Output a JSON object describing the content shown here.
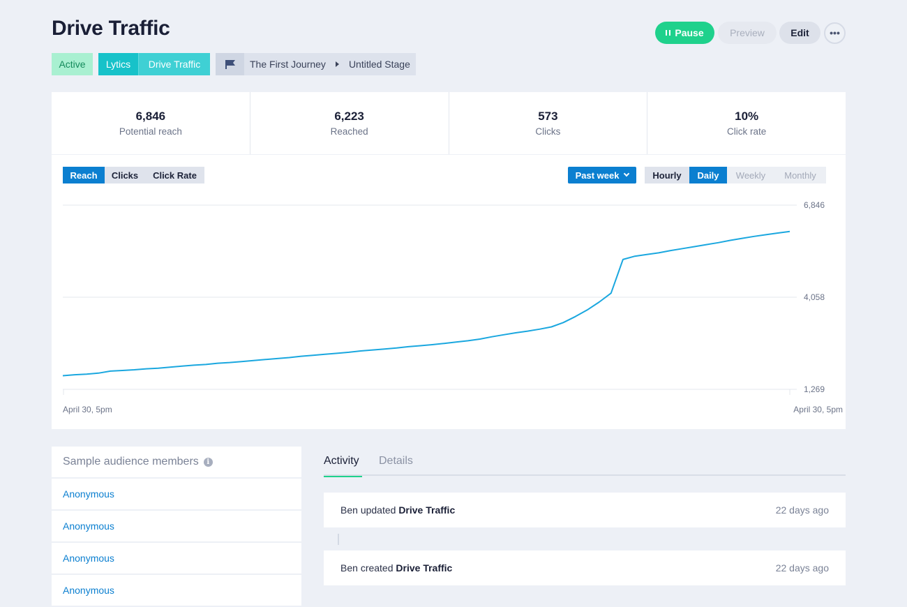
{
  "header": {
    "title": "Drive Traffic",
    "actions": {
      "pause_label": "Pause",
      "preview_label": "Preview",
      "edit_label": "Edit",
      "more_label": "•••"
    },
    "tags": {
      "status": "Active",
      "source": "Lytics",
      "name": "Drive Traffic"
    },
    "breadcrumb": {
      "journey": "The First Journey",
      "stage": "Untitled Stage"
    }
  },
  "stats": [
    {
      "value": "6,846",
      "label": "Potential reach"
    },
    {
      "value": "6,223",
      "label": "Reached"
    },
    {
      "value": "573",
      "label": "Clicks"
    },
    {
      "value": "10%",
      "label": "Click rate"
    }
  ],
  "chart_controls": {
    "metric_tabs": [
      "Reach",
      "Clicks",
      "Click Rate"
    ],
    "active_metric": "Reach",
    "range_label": "Past week",
    "granularity": [
      "Hourly",
      "Daily",
      "Weekly",
      "Monthly"
    ],
    "active_granularity": "Daily"
  },
  "chart_data": {
    "type": "line",
    "title": "",
    "xlabel": "",
    "ylabel": "",
    "ylim": [
      1269,
      6846
    ],
    "y_ticks": [
      "6,846",
      "4,058",
      "1,269"
    ],
    "y_tick_values": [
      6846,
      4058,
      1269
    ],
    "x_labels": [
      "April 30, 5pm",
      "April 30, 5pm"
    ],
    "series": [
      {
        "name": "Reach",
        "color": "#1aa7df",
        "values": [
          1680,
          1710,
          1730,
          1760,
          1820,
          1840,
          1860,
          1890,
          1910,
          1940,
          1970,
          2000,
          2020,
          2060,
          2080,
          2110,
          2140,
          2170,
          2200,
          2230,
          2270,
          2300,
          2330,
          2360,
          2390,
          2430,
          2460,
          2490,
          2520,
          2560,
          2590,
          2620,
          2660,
          2700,
          2740,
          2790,
          2860,
          2920,
          2980,
          3030,
          3090,
          3160,
          3290,
          3470,
          3670,
          3910,
          4180,
          5200,
          5300,
          5350,
          5400,
          5470,
          5530,
          5590,
          5650,
          5710,
          5780,
          5840,
          5900,
          5950,
          6000,
          6050
        ]
      }
    ]
  },
  "audience": {
    "title": "Sample audience members",
    "members": [
      "Anonymous",
      "Anonymous",
      "Anonymous",
      "Anonymous"
    ]
  },
  "activity": {
    "tabs": [
      "Activity",
      "Details"
    ],
    "items": [
      {
        "actor": "Ben",
        "verb": "updated",
        "target": "Drive Traffic",
        "time": "22 days ago"
      },
      {
        "actor": "Ben",
        "verb": "created",
        "target": "Drive Traffic",
        "time": "22 days ago"
      }
    ]
  }
}
